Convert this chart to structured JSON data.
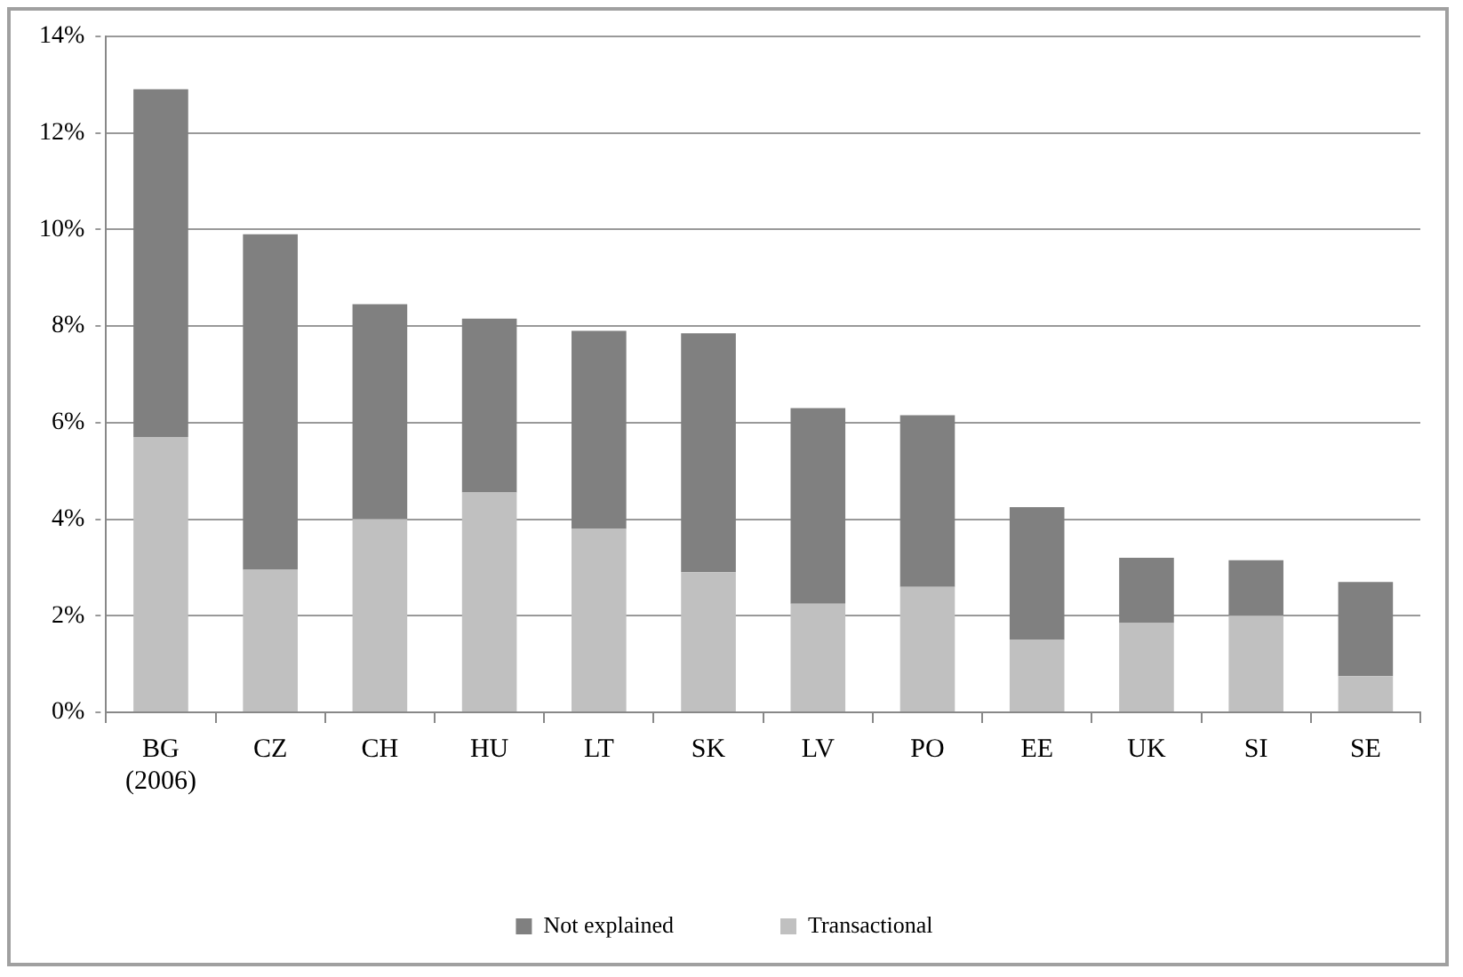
{
  "chart_data": {
    "type": "bar",
    "stacked": true,
    "categories": [
      "BG\n(2006)",
      "CZ",
      "CH",
      "HU",
      "LT",
      "SK",
      "LV",
      "PO",
      "EE",
      "UK",
      "SI",
      "SE"
    ],
    "series": [
      {
        "name": "Transactional",
        "color": "#c0c0c0",
        "values": [
          5.7,
          2.95,
          4.0,
          4.55,
          3.8,
          2.9,
          2.25,
          2.6,
          1.5,
          1.85,
          2.0,
          0.75
        ]
      },
      {
        "name": "Not explained",
        "color": "#808080",
        "values": [
          7.2,
          6.95,
          4.45,
          3.6,
          4.1,
          4.95,
          4.05,
          3.55,
          2.75,
          1.35,
          1.15,
          1.95
        ]
      }
    ],
    "ylim": [
      0,
      14
    ],
    "yticks": [
      {
        "value": 0,
        "label": "0%"
      },
      {
        "value": 2,
        "label": "2%"
      },
      {
        "value": 4,
        "label": "4%"
      },
      {
        "value": 6,
        "label": "6%"
      },
      {
        "value": 8,
        "label": "8%"
      },
      {
        "value": 10,
        "label": "10%"
      },
      {
        "value": 12,
        "label": "12%"
      },
      {
        "value": 14,
        "label": "14%"
      }
    ],
    "grid": "y",
    "legend": "bottom"
  }
}
